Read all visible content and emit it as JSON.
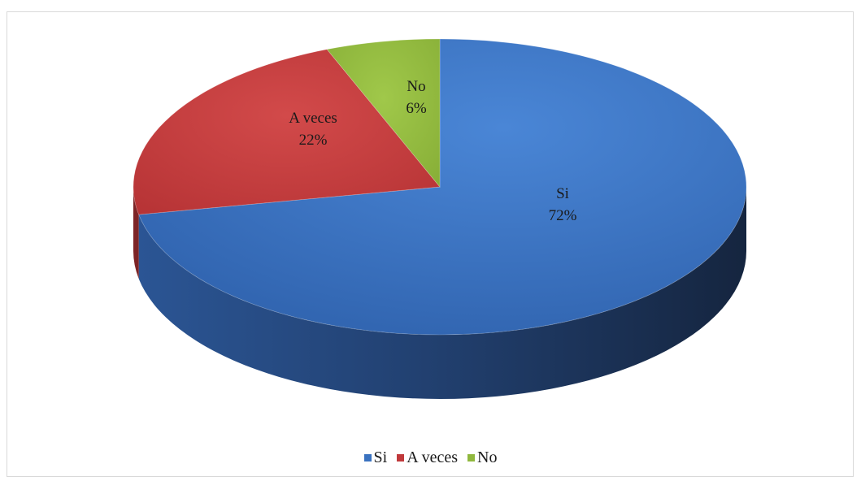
{
  "chart_data": {
    "type": "pie",
    "three_d": true,
    "title": "",
    "legend_position": "bottom",
    "slices": [
      {
        "name": "Si",
        "percent": 72,
        "label_name": "Si",
        "label_value": "72%",
        "color": "#3a72c0",
        "side_color": "#1f3f6e"
      },
      {
        "name": "A veces",
        "percent": 22,
        "label_name": "A veces",
        "label_value": "22%",
        "color": "#c0393b",
        "side_color": "#7d2426"
      },
      {
        "name": "No",
        "percent": 6,
        "label_name": "No",
        "label_value": "6%",
        "color": "#90b83e",
        "side_color": "#5f7b27"
      }
    ],
    "legend": [
      "Si",
      "A veces",
      "No"
    ]
  }
}
